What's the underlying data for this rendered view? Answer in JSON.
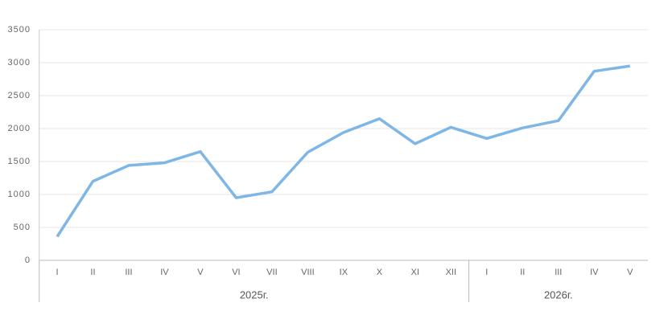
{
  "chart_data": {
    "type": "line",
    "categories": [
      "I",
      "II",
      "III",
      "IV",
      "V",
      "VI",
      "VII",
      "VIII",
      "IX",
      "X",
      "XI",
      "XII",
      "I",
      "II",
      "III",
      "IV",
      "V"
    ],
    "groups": [
      {
        "name": "2025г.",
        "span": 12
      },
      {
        "name": "2026г.",
        "span": 5
      }
    ],
    "series": [
      {
        "color": "#7eb6e6",
        "values": [
          360,
          1200,
          1440,
          1480,
          1650,
          950,
          1040,
          1640,
          1940,
          2150,
          1770,
          2020,
          1850,
          2010,
          2120,
          2870,
          2950
        ]
      }
    ],
    "ylim": [
      0,
      3500
    ],
    "yticks": [
      0,
      500,
      1000,
      1500,
      2000,
      2500,
      3000,
      3500
    ],
    "grid": true
  }
}
